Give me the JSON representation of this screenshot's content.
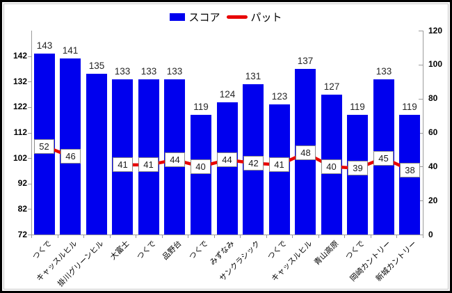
{
  "legend": {
    "score_label": "スコア",
    "putt_label": "パット"
  },
  "colors": {
    "bar": "#0000ee",
    "line": "#e80000",
    "axis": "#9b9b9b",
    "tick": "#9b9b9b",
    "putt_label_border": "#8a8a8a",
    "bar_label_text": "#262626"
  },
  "chart_data": {
    "type": "bar+line combo",
    "title": "",
    "legend_position": "top",
    "grid": false,
    "categories": [
      "つくで",
      "キャッスルヒル",
      "掛川グリーンヒル",
      "大富士",
      "つくで",
      "品野台",
      "つくで",
      "みずなみ",
      "サンクラシック",
      "つくで",
      "キャッスルヒル",
      "青山高原",
      "つくで",
      "岡崎カントリー",
      "新城カントリー"
    ],
    "series": [
      {
        "name": "スコア",
        "type": "bar",
        "axis": "left",
        "values": [
          143,
          141,
          135,
          133,
          133,
          133,
          119,
          124,
          131,
          123,
          137,
          127,
          119,
          133,
          119
        ]
      },
      {
        "name": "パット",
        "type": "line",
        "axis": "right",
        "values": [
          52,
          46,
          null,
          41,
          41,
          44,
          40,
          44,
          42,
          41,
          48,
          40,
          39,
          45,
          38
        ]
      }
    ],
    "left_axis": {
      "min": 72,
      "max": 152,
      "ticks": [
        142,
        132,
        122,
        112,
        102,
        92,
        82,
        72
      ]
    },
    "right_axis": {
      "min": 0,
      "max": 120,
      "ticks": [
        120,
        100,
        80,
        60,
        40,
        20,
        0
      ]
    }
  }
}
